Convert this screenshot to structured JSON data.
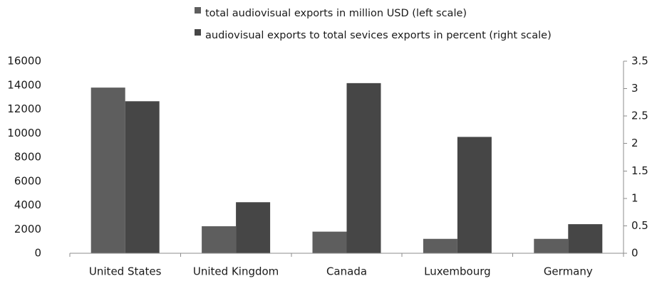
{
  "chart_data": {
    "type": "bar",
    "categories": [
      "United States",
      "United Kingdom",
      "Canada",
      "Luxembourg",
      "Germany"
    ],
    "series": [
      {
        "name": "total audiovisual exports in million USD (left scale)",
        "axis": "left",
        "color": "#5e5e5e",
        "values": [
          13800,
          2250,
          1800,
          1200,
          1200
        ]
      },
      {
        "name": "audiovisual exports to total sevices exports in percent (right scale)",
        "axis": "right",
        "color": "#464646",
        "values": [
          2.77,
          0.93,
          3.1,
          2.12,
          0.53
        ]
      }
    ],
    "left_axis": {
      "ylim": [
        0,
        16000
      ],
      "ticks": [
        0,
        2000,
        4000,
        6000,
        8000,
        10000,
        12000,
        14000,
        16000
      ],
      "tick_labels": [
        "0",
        "2000",
        "4000",
        "6000",
        "8000",
        "10000",
        "12000",
        "14000",
        "16000"
      ]
    },
    "right_axis": {
      "ylim": [
        0,
        3.5
      ],
      "ticks": [
        0,
        0.5,
        1,
        1.5,
        2,
        2.5,
        3,
        3.5
      ],
      "tick_labels": [
        "0",
        "0.5",
        "1",
        "1.5",
        "2",
        "2.5",
        "3",
        "3.5"
      ]
    },
    "grid": false,
    "legend_position": "top-center"
  }
}
